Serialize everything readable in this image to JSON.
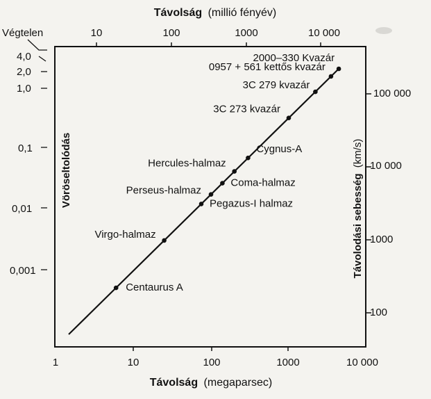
{
  "chart_data": {
    "type": "scatter",
    "title_top": {
      "bold": "Távolság",
      "rest": "(millió fényév)"
    },
    "xlabel": {
      "bold": "Távolság",
      "rest": "(megaparsec)"
    },
    "ylabel_left": "Vöröseltolódás",
    "ylabel_right": {
      "bold": "Távolodási sebesség",
      "rest": "(km/s)"
    },
    "x_scale": "log",
    "xlim": [
      1,
      10000
    ],
    "top_ticks": [
      "10",
      "100",
      "1000",
      "10 000"
    ],
    "bottom_ticks": [
      "1",
      "10",
      "100",
      "1000",
      "10 000"
    ],
    "left_ticks": [
      "Végtelen",
      "4,0",
      "2,0",
      "1,0",
      "0,1",
      "0,01",
      "0,001"
    ],
    "right_ticks": [
      "100 000",
      "10 000",
      "1000",
      "100"
    ],
    "series": [
      {
        "points": [
          {
            "label": "Centaurus A",
            "x": 6
          },
          {
            "label": "Virgo-halmaz",
            "x": 25
          },
          {
            "label": "Pegazus-I halmaz",
            "x": 75
          },
          {
            "label": "Perseus-halmaz",
            "x": 100
          },
          {
            "label": "Coma-halmaz",
            "x": 140
          },
          {
            "label": "Hercules-halmaz",
            "x": 200
          },
          {
            "label": "Cygnus-A",
            "x": 300
          },
          {
            "label": "3C 273 kvazár",
            "x": 1000
          },
          {
            "label": "3C 279 kvazár",
            "x": 2200
          },
          {
            "label": "0957 + 561 kettős kvazár",
            "x": 3500
          },
          {
            "label": "2000–330 Kvazár",
            "x": 4400
          }
        ]
      }
    ]
  }
}
